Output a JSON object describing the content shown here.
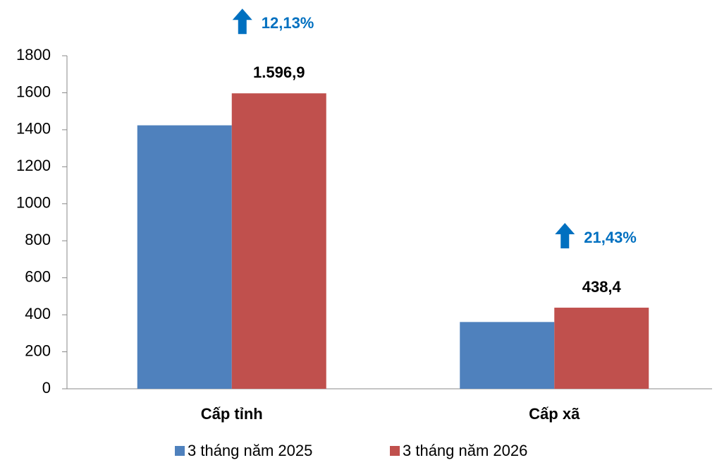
{
  "chart_data": {
    "type": "bar",
    "categories": [
      "Cấp tỉnh",
      "Cấp xã"
    ],
    "series": [
      {
        "name": "3 tháng năm 2025",
        "color": "#4f81bd",
        "values": [
          1424,
          361
        ]
      },
      {
        "name": "3 tháng năm 2026",
        "color": "#c0504d",
        "values": [
          1596.9,
          438.4
        ],
        "value_labels": [
          "1.596,9",
          "438,4"
        ]
      }
    ],
    "annotations": [
      "12,13%",
      "21,43%"
    ],
    "annotation_color": "#0070c0",
    "ylim": [
      0,
      1800
    ],
    "yticks": [
      0,
      200,
      400,
      600,
      800,
      1000,
      1200,
      1400,
      1600,
      1800
    ],
    "grid": false,
    "legend": "bottom"
  }
}
